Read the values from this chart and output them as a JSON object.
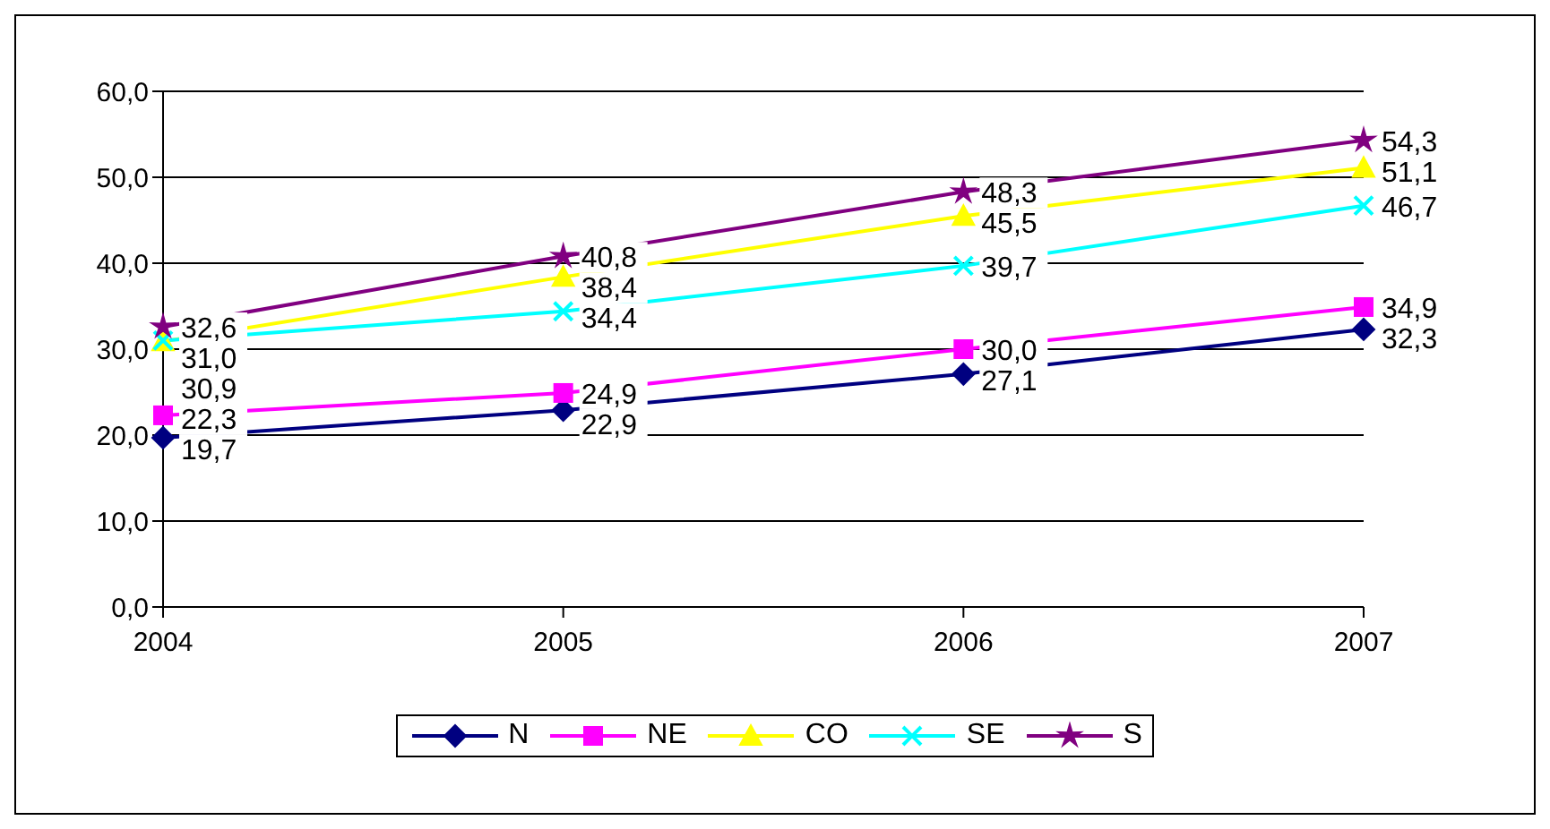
{
  "chart_data": {
    "type": "line",
    "categories": [
      "2004",
      "2005",
      "2006",
      "2007"
    ],
    "series": [
      {
        "name": "N",
        "color": "#000080",
        "marker": "diamond",
        "values": [
          19.7,
          22.9,
          27.1,
          32.3
        ],
        "value_labels": [
          "19,7",
          "22,9",
          "27,1",
          "32,3"
        ]
      },
      {
        "name": "NE",
        "color": "#ff00ff",
        "marker": "square",
        "values": [
          22.3,
          24.9,
          30.0,
          34.9
        ],
        "value_labels": [
          "22,3",
          "24,9",
          "30,0",
          "34,9"
        ]
      },
      {
        "name": "CO",
        "color": "#ffff00",
        "marker": "triangle",
        "values": [
          30.9,
          38.4,
          45.5,
          51.1
        ],
        "value_labels": [
          "30,9",
          "38,4",
          "45,5",
          "51,1"
        ]
      },
      {
        "name": "SE",
        "color": "#00ffff",
        "marker": "cross",
        "values": [
          31.0,
          34.4,
          39.7,
          46.7
        ],
        "value_labels": [
          "31,0",
          "34,4",
          "39,7",
          "46,7"
        ]
      },
      {
        "name": "S",
        "color": "#800080",
        "marker": "star",
        "values": [
          32.6,
          40.8,
          48.3,
          54.3
        ],
        "value_labels": [
          "32,6",
          "40,8",
          "48,3",
          "54,3"
        ]
      }
    ],
    "ylim": [
      0,
      60
    ],
    "yticks": [
      {
        "value": 0,
        "label": "0,0"
      },
      {
        "value": 10,
        "label": "10,0"
      },
      {
        "value": 20,
        "label": "20,0"
      },
      {
        "value": 30,
        "label": "30,0"
      },
      {
        "value": 40,
        "label": "40,0"
      },
      {
        "value": 50,
        "label": "50,0"
      },
      {
        "value": 60,
        "label": "60,0"
      }
    ],
    "grid": "y",
    "legend": "bottom",
    "line_style": "solid"
  }
}
